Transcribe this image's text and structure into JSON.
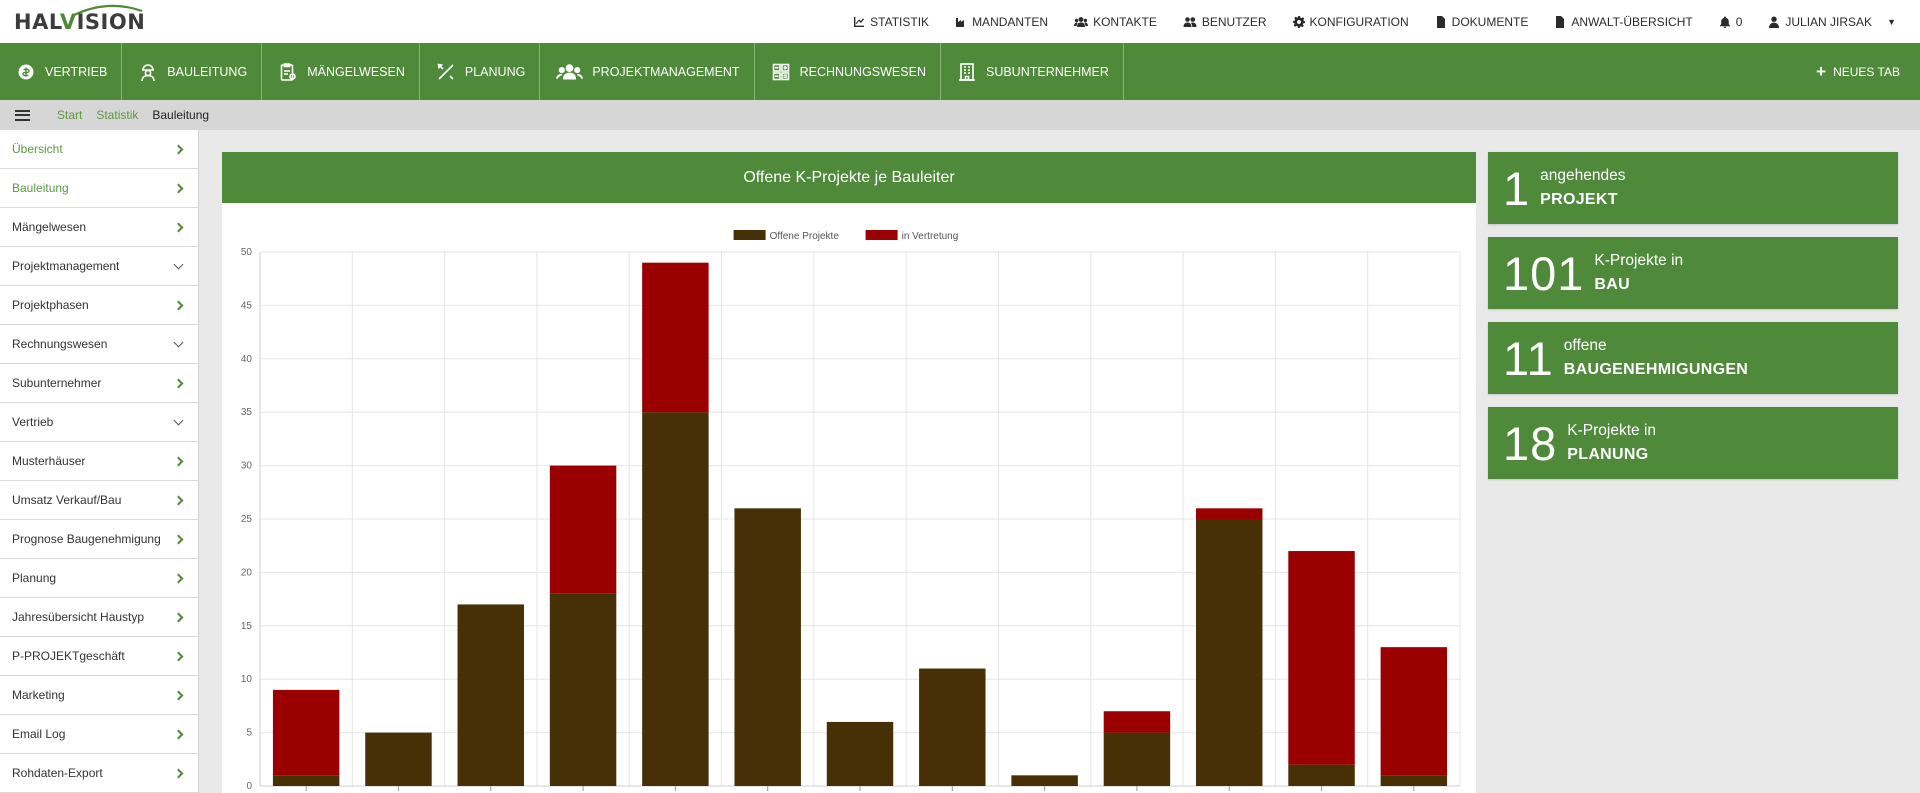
{
  "logo": {
    "text_prefix": "HAL",
    "text_v": "V",
    "text_suffix": "ISION"
  },
  "topnav": {
    "items": [
      {
        "label": "STATISTIK",
        "icon": "line-chart-icon"
      },
      {
        "label": "MANDANTEN",
        "icon": "industry-icon"
      },
      {
        "label": "KONTAKTE",
        "icon": "users-icon"
      },
      {
        "label": "BENUTZER",
        "icon": "user-group-icon"
      },
      {
        "label": "KONFIGURATION",
        "icon": "gear-icon"
      },
      {
        "label": "DOKUMENTE",
        "icon": "file-icon"
      },
      {
        "label": "ANWALT-ÜBERSICHT",
        "icon": "file-icon"
      },
      {
        "label": "0",
        "icon": "bell-icon"
      },
      {
        "label": "JULIAN JIRSAK",
        "icon": "user-icon"
      }
    ]
  },
  "modules": [
    {
      "label": "VERTRIEB",
      "icon": "coins-icon"
    },
    {
      "label": "BAULEITUNG",
      "icon": "worker-icon"
    },
    {
      "label": "MÄNGELWESEN",
      "icon": "clipboard-icon"
    },
    {
      "label": "PLANUNG",
      "icon": "ruler-pencil-icon"
    },
    {
      "label": "PROJEKTMANAGEMENT",
      "icon": "team-icon"
    },
    {
      "label": "RECHNUNGSWESEN",
      "icon": "calculator-icon"
    },
    {
      "label": "SUBUNTERNEHMER",
      "icon": "building-icon"
    }
  ],
  "new_tab_label": "NEUES TAB",
  "breadcrumb": {
    "items": [
      "Start",
      "Statistik"
    ],
    "current": "Bauleitung"
  },
  "sidebar": {
    "items": [
      {
        "label": "Übersicht",
        "chevron": "right",
        "active": true
      },
      {
        "label": "Bauleitung",
        "chevron": "right",
        "active": true
      },
      {
        "label": "Mängelwesen",
        "chevron": "right",
        "active": false
      },
      {
        "label": "Projektmanagement",
        "chevron": "down",
        "active": false
      },
      {
        "label": "Projektphasen",
        "chevron": "right",
        "active": false
      },
      {
        "label": "Rechnungswesen",
        "chevron": "down",
        "active": false
      },
      {
        "label": "Subunternehmer",
        "chevron": "right",
        "active": false
      },
      {
        "label": "Vertrieb",
        "chevron": "down",
        "active": false
      },
      {
        "label": "Musterhäuser",
        "chevron": "right",
        "active": false
      },
      {
        "label": "Umsatz Verkauf/Bau",
        "chevron": "right",
        "active": false
      },
      {
        "label": "Prognose Baugenehmigung",
        "chevron": "right",
        "active": false
      },
      {
        "label": "Planung",
        "chevron": "right",
        "active": false
      },
      {
        "label": "Jahresübersicht Haustyp",
        "chevron": "right",
        "active": false
      },
      {
        "label": "P-PROJEKTgeschäft",
        "chevron": "right",
        "active": false
      },
      {
        "label": "Marketing",
        "chevron": "right",
        "active": false
      },
      {
        "label": "Email Log",
        "chevron": "right",
        "active": false
      },
      {
        "label": "Rohdaten-Export",
        "chevron": "right",
        "active": false
      }
    ]
  },
  "chart_title": "Offene K-Projekte je Bauleiter",
  "chart_data": {
    "type": "bar",
    "stacked": true,
    "title": "Offene K-Projekte je Bauleiter",
    "ylim": [
      0,
      50
    ],
    "yticks": [
      0,
      5,
      10,
      15,
      20,
      25,
      30,
      35,
      40,
      45,
      50
    ],
    "grid": true,
    "legend_position": "top",
    "categories": [
      "",
      "",
      "",
      "",
      "",
      "",
      "",
      "",
      "",
      "",
      "",
      "",
      ""
    ],
    "series": [
      {
        "name": "Offene Projekte",
        "color": "#472f06",
        "values": [
          1,
          5,
          17,
          18,
          35,
          26,
          6,
          11,
          1,
          5,
          25,
          2,
          1
        ]
      },
      {
        "name": "in Vertretung",
        "color": "#9b0000",
        "values": [
          8,
          0,
          0,
          12,
          14,
          0,
          0,
          0,
          0,
          2,
          1,
          20,
          12
        ]
      }
    ]
  },
  "stats": [
    {
      "number": "1",
      "line1": "angehendes",
      "line2": "PROJEKT"
    },
    {
      "number": "101",
      "line1": "K-Projekte in",
      "line2": "BAU"
    },
    {
      "number": "11",
      "line1": "offene",
      "line2": "BAUGENEHMIGUNGEN"
    },
    {
      "number": "18",
      "line1": "K-Projekte in",
      "line2": "PLANUNG"
    }
  ],
  "colors": {
    "brand_green": "#4e8a3a",
    "link_green": "#5a9a3f",
    "bar_dark": "#472f06",
    "bar_red": "#9b0000"
  }
}
